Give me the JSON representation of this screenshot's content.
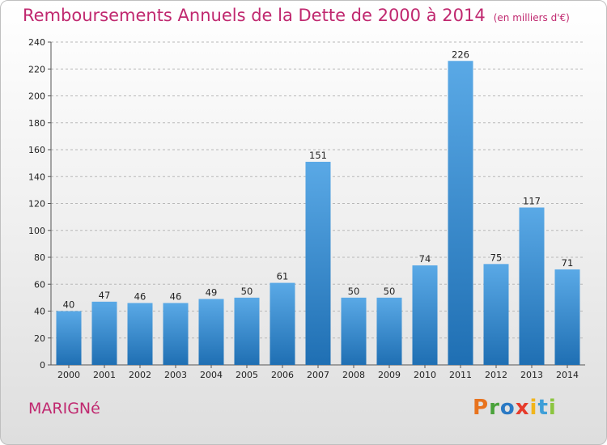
{
  "header": {
    "title": "Remboursements Annuels de la Dette de 2000 à 2014",
    "unit_note": "(en milliers d'€)"
  },
  "footer": {
    "place_name": "MARIGNé",
    "logo_text": "Proxiti",
    "logo_colors": [
      "#e8731e",
      "#4aa23a",
      "#2a79c4",
      "#e63b2b",
      "#f1b51c",
      "#3f9fd8",
      "#8bc53f"
    ]
  },
  "colors": {
    "title": "#c0286f",
    "bar_top": "#5aa9e6",
    "bar_bottom": "#1f6fb3",
    "grid": "#b8b8b8"
  },
  "chart_data": {
    "type": "bar",
    "categories": [
      "2000",
      "2001",
      "2002",
      "2003",
      "2004",
      "2005",
      "2006",
      "2007",
      "2008",
      "2009",
      "2010",
      "2011",
      "2012",
      "2013",
      "2014"
    ],
    "values": [
      40,
      47,
      46,
      46,
      49,
      50,
      61,
      151,
      50,
      50,
      74,
      226,
      75,
      117,
      71
    ],
    "data_labels": [
      "40",
      "47",
      "46",
      "46",
      "49",
      "50",
      "61",
      "151",
      "50",
      "50",
      "74",
      "226",
      "75",
      "117",
      "71"
    ],
    "ylim": [
      0,
      240
    ],
    "yticks": [
      0,
      20,
      40,
      60,
      80,
      100,
      120,
      140,
      160,
      180,
      200,
      220,
      240
    ],
    "grid": true,
    "legend": "none"
  }
}
